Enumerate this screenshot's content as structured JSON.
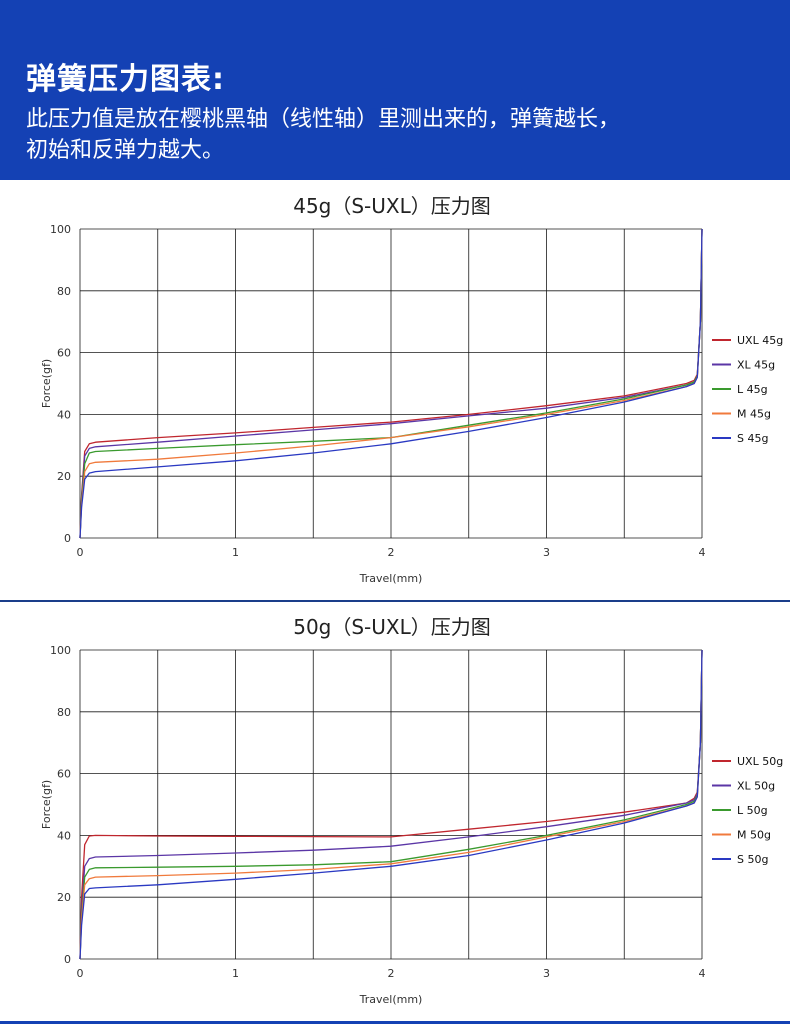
{
  "banner": {
    "heading": "弹簧压力图表:",
    "line1": "此压力值是放在樱桃黑轴（线性轴）里测出来的，弹簧越长，",
    "line2": "初始和反弹力越大。"
  },
  "colors": {
    "banner_bg": "#1441b4",
    "divider": "#1a3e8a"
  },
  "chart_data": [
    {
      "type": "line",
      "title": "45g（S-UXL）压力图",
      "xlabel": "Travel(mm)",
      "ylabel": "Force(gf)",
      "xlim": [
        0,
        4
      ],
      "ylim": [
        0,
        100
      ],
      "xticks": [
        0,
        1,
        2,
        3,
        4
      ],
      "yticks": [
        0,
        20,
        40,
        60,
        80,
        100
      ],
      "grid": true,
      "x_gridlines": [
        0,
        0.5,
        1,
        1.5,
        2,
        2.5,
        3,
        3.5,
        4
      ],
      "legend_position": "right",
      "series": [
        {
          "name": "UXL 45g",
          "color": "#c0262e",
          "points": [
            [
              0,
              0
            ],
            [
              0.01,
              14
            ],
            [
              0.03,
              28
            ],
            [
              0.06,
              30.5
            ],
            [
              0.1,
              31
            ],
            [
              0.5,
              32.5
            ],
            [
              1,
              34
            ],
            [
              1.5,
              35.8
            ],
            [
              2,
              37.5
            ],
            [
              2.5,
              40
            ],
            [
              3,
              42.8
            ],
            [
              3.5,
              46
            ],
            [
              3.9,
              50
            ],
            [
              3.95,
              51
            ],
            [
              3.97,
              53
            ],
            [
              3.99,
              70
            ],
            [
              4,
              100
            ]
          ]
        },
        {
          "name": "XL 45g",
          "color": "#5b36a6",
          "points": [
            [
              0,
              0
            ],
            [
              0.01,
              13
            ],
            [
              0.03,
              26.5
            ],
            [
              0.06,
              29
            ],
            [
              0.1,
              29.5
            ],
            [
              0.5,
              31
            ],
            [
              1,
              33
            ],
            [
              1.5,
              35
            ],
            [
              2,
              37
            ],
            [
              2.5,
              39.5
            ],
            [
              3,
              42
            ],
            [
              3.5,
              45.5
            ],
            [
              3.9,
              49.5
            ],
            [
              3.95,
              50.5
            ],
            [
              3.97,
              52.5
            ],
            [
              3.99,
              70
            ],
            [
              4,
              100
            ]
          ]
        },
        {
          "name": "L 45g",
          "color": "#3a9a2e",
          "points": [
            [
              0,
              0
            ],
            [
              0.01,
              12
            ],
            [
              0.03,
              24
            ],
            [
              0.06,
              27.5
            ],
            [
              0.1,
              28
            ],
            [
              0.5,
              29
            ],
            [
              1,
              30.2
            ],
            [
              1.5,
              31.3
            ],
            [
              2,
              32.5
            ],
            [
              2.5,
              36.5
            ],
            [
              3,
              40.5
            ],
            [
              3.5,
              45
            ],
            [
              3.9,
              49.5
            ],
            [
              3.95,
              50.5
            ],
            [
              3.97,
              52.5
            ],
            [
              3.99,
              70
            ],
            [
              4,
              100
            ]
          ]
        },
        {
          "name": "M 45g",
          "color": "#f07a3c",
          "points": [
            [
              0,
              0
            ],
            [
              0.01,
              11
            ],
            [
              0.03,
              21.5
            ],
            [
              0.06,
              24
            ],
            [
              0.1,
              24.5
            ],
            [
              0.5,
              25.5
            ],
            [
              1,
              27.5
            ],
            [
              1.5,
              29.8
            ],
            [
              2,
              32.5
            ],
            [
              2.5,
              36
            ],
            [
              3,
              40
            ],
            [
              3.5,
              44.5
            ],
            [
              3.9,
              49
            ],
            [
              3.95,
              50
            ],
            [
              3.97,
              52
            ],
            [
              3.99,
              70
            ],
            [
              4,
              100
            ]
          ]
        },
        {
          "name": "S 45g",
          "color": "#2a39c2",
          "points": [
            [
              0,
              0
            ],
            [
              0.01,
              10
            ],
            [
              0.03,
              19
            ],
            [
              0.06,
              21
            ],
            [
              0.1,
              21.5
            ],
            [
              0.5,
              23
            ],
            [
              1,
              25
            ],
            [
              1.5,
              27.5
            ],
            [
              2,
              30.5
            ],
            [
              2.5,
              34.5
            ],
            [
              3,
              39
            ],
            [
              3.5,
              44
            ],
            [
              3.9,
              49
            ],
            [
              3.95,
              50
            ],
            [
              3.97,
              52
            ],
            [
              3.99,
              70
            ],
            [
              4,
              100
            ]
          ]
        }
      ]
    },
    {
      "type": "line",
      "title": "50g（S-UXL）压力图",
      "xlabel": "Travel(mm)",
      "ylabel": "Force(gf)",
      "xlim": [
        0,
        4
      ],
      "ylim": [
        0,
        100
      ],
      "xticks": [
        0,
        1,
        2,
        3,
        4
      ],
      "yticks": [
        0,
        20,
        40,
        60,
        80,
        100
      ],
      "grid": true,
      "x_gridlines": [
        0,
        0.5,
        1,
        1.5,
        2,
        2.5,
        3,
        3.5,
        4
      ],
      "legend_position": "right",
      "series": [
        {
          "name": "UXL 50g",
          "color": "#c0262e",
          "points": [
            [
              0,
              0
            ],
            [
              0.01,
              20
            ],
            [
              0.03,
              37
            ],
            [
              0.06,
              39.8
            ],
            [
              0.1,
              40
            ],
            [
              0.5,
              39.8
            ],
            [
              1,
              39.7
            ],
            [
              1.5,
              39.6
            ],
            [
              2,
              39.5
            ],
            [
              2.5,
              42
            ],
            [
              3,
              44.5
            ],
            [
              3.5,
              47.5
            ],
            [
              3.9,
              50.5
            ],
            [
              3.95,
              52
            ],
            [
              3.97,
              54
            ],
            [
              3.99,
              70
            ],
            [
              4,
              100
            ]
          ]
        },
        {
          "name": "XL 50g",
          "color": "#5b36a6",
          "points": [
            [
              0,
              0
            ],
            [
              0.01,
              16
            ],
            [
              0.03,
              30
            ],
            [
              0.06,
              32.5
            ],
            [
              0.1,
              33
            ],
            [
              0.5,
              33.5
            ],
            [
              1,
              34.3
            ],
            [
              1.5,
              35.2
            ],
            [
              2,
              36.5
            ],
            [
              2.5,
              39.5
            ],
            [
              3,
              42.8
            ],
            [
              3.5,
              46.5
            ],
            [
              3.9,
              50.5
            ],
            [
              3.95,
              51.5
            ],
            [
              3.97,
              53.5
            ],
            [
              3.99,
              70
            ],
            [
              4,
              100
            ]
          ]
        },
        {
          "name": "L 50g",
          "color": "#3a9a2e",
          "points": [
            [
              0,
              0
            ],
            [
              0.01,
              14
            ],
            [
              0.03,
              26.5
            ],
            [
              0.06,
              29
            ],
            [
              0.1,
              29.5
            ],
            [
              0.5,
              29.7
            ],
            [
              1,
              30
            ],
            [
              1.5,
              30.5
            ],
            [
              2,
              31.5
            ],
            [
              2.5,
              35.5
            ],
            [
              3,
              40
            ],
            [
              3.5,
              45
            ],
            [
              3.9,
              50
            ],
            [
              3.95,
              51
            ],
            [
              3.97,
              53
            ],
            [
              3.99,
              70
            ],
            [
              4,
              100
            ]
          ]
        },
        {
          "name": "M 50g",
          "color": "#f07a3c",
          "points": [
            [
              0,
              0
            ],
            [
              0.01,
              13
            ],
            [
              0.03,
              24
            ],
            [
              0.06,
              26
            ],
            [
              0.1,
              26.5
            ],
            [
              0.5,
              27
            ],
            [
              1,
              27.8
            ],
            [
              1.5,
              29
            ],
            [
              2,
              30.8
            ],
            [
              2.5,
              34.5
            ],
            [
              3,
              39.5
            ],
            [
              3.5,
              44.5
            ],
            [
              3.9,
              49.5
            ],
            [
              3.95,
              50.5
            ],
            [
              3.97,
              52.5
            ],
            [
              3.99,
              70
            ],
            [
              4,
              100
            ]
          ]
        },
        {
          "name": "S 50g",
          "color": "#2a39c2",
          "points": [
            [
              0,
              0
            ],
            [
              0.01,
              11
            ],
            [
              0.03,
              21
            ],
            [
              0.06,
              22.8
            ],
            [
              0.1,
              23
            ],
            [
              0.5,
              24
            ],
            [
              1,
              25.8
            ],
            [
              1.5,
              27.8
            ],
            [
              2,
              30
            ],
            [
              2.5,
              33.5
            ],
            [
              3,
              38.5
            ],
            [
              3.5,
              44
            ],
            [
              3.9,
              49.5
            ],
            [
              3.95,
              50.5
            ],
            [
              3.97,
              52.5
            ],
            [
              3.99,
              70
            ],
            [
              4,
              100
            ]
          ]
        }
      ]
    }
  ]
}
